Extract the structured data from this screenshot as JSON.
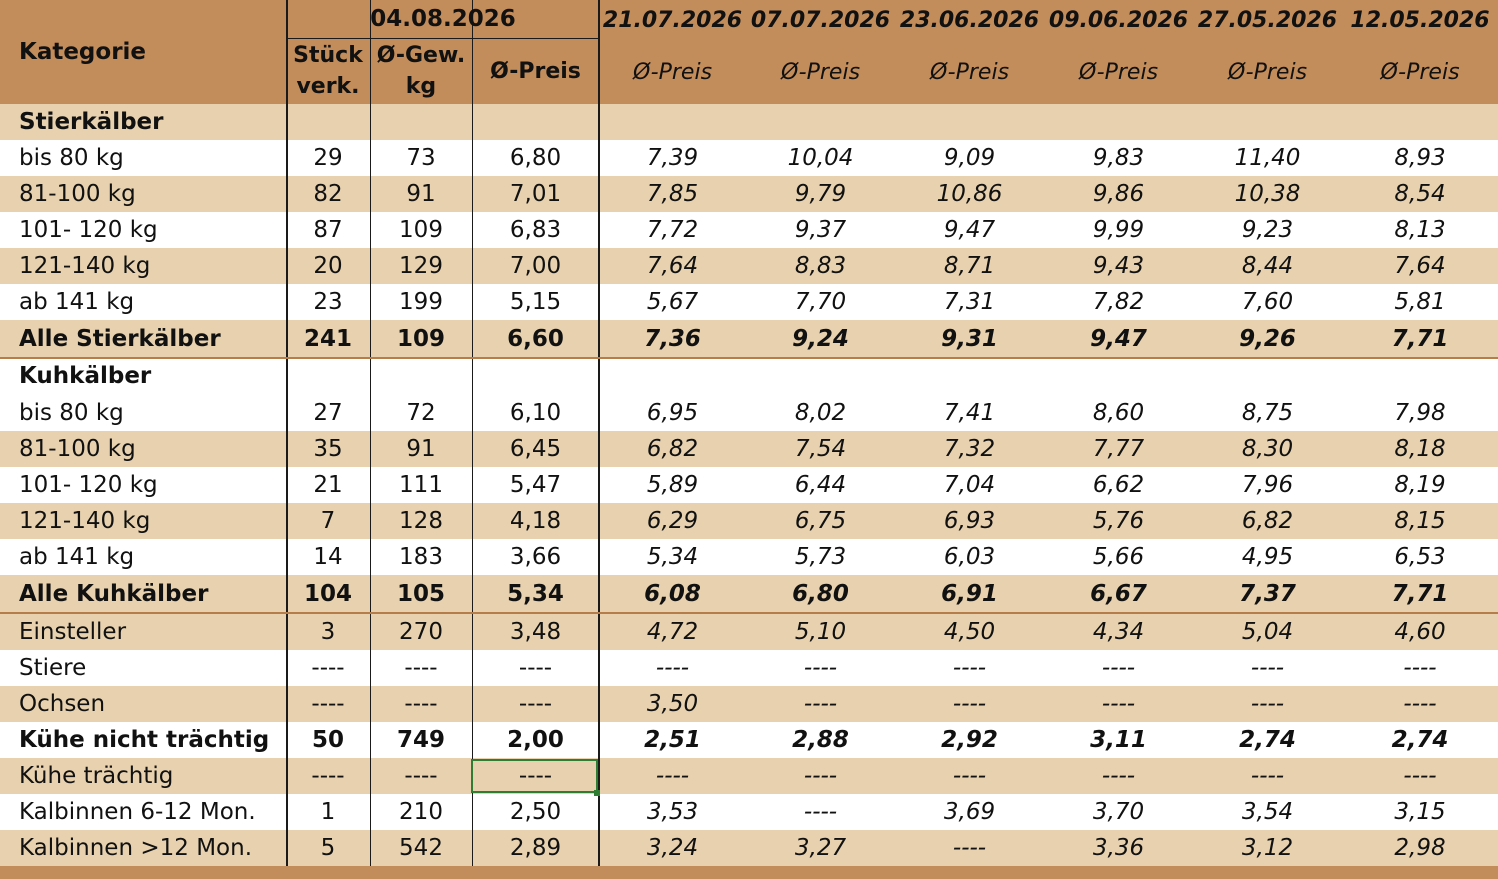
{
  "header": {
    "kategorie": "Kategorie",
    "current_date": "04.08.2026",
    "col_stueck": "Stück\nverk.",
    "col_gewicht": "Ø-Gew.\nkg",
    "col_preis": "Ø-Preis",
    "previous_dates": [
      "21.07.2026",
      "07.07.2026",
      "23.06.2026",
      "09.06.2026",
      "27.05.2026",
      "12.05.2026"
    ],
    "previous_preis_label": "Ø-Preis"
  },
  "rows": [
    {
      "label": "Stierkälber",
      "style": "section",
      "cells": [
        "",
        "",
        "",
        "",
        "",
        "",
        "",
        "",
        ""
      ]
    },
    {
      "label": "bis 80 kg",
      "style": "normal",
      "cells": [
        "29",
        "73",
        "6,80",
        "7,39",
        "10,04",
        "9,09",
        "9,83",
        "11,40",
        "8,93"
      ]
    },
    {
      "label": "81-100 kg",
      "style": "normal",
      "cells": [
        "82",
        "91",
        "7,01",
        "7,85",
        "9,79",
        "10,86",
        "9,86",
        "10,38",
        "8,54"
      ]
    },
    {
      "label": "101- 120 kg",
      "style": "normal",
      "cells": [
        "87",
        "109",
        "6,83",
        "7,72",
        "9,37",
        "9,47",
        "9,99",
        "9,23",
        "8,13"
      ]
    },
    {
      "label": "121-140 kg",
      "style": "normal",
      "cells": [
        "20",
        "129",
        "7,00",
        "7,64",
        "8,83",
        "8,71",
        "9,43",
        "8,44",
        "7,64"
      ]
    },
    {
      "label": "ab 141 kg",
      "style": "normal",
      "cells": [
        "23",
        "199",
        "5,15",
        "5,67",
        "7,70",
        "7,31",
        "7,82",
        "7,60",
        "5,81"
      ]
    },
    {
      "label": "Alle Stierkälber",
      "style": "total",
      "cells": [
        "241",
        "109",
        "6,60",
        "7,36",
        "9,24",
        "9,31",
        "9,47",
        "9,26",
        "7,71"
      ]
    },
    {
      "label": "Kuhkälber",
      "style": "section",
      "cells": [
        "",
        "",
        "",
        "",
        "",
        "",
        "",
        "",
        ""
      ]
    },
    {
      "label": "bis 80 kg",
      "style": "normal",
      "cells": [
        "27",
        "72",
        "6,10",
        "6,95",
        "8,02",
        "7,41",
        "8,60",
        "8,75",
        "7,98"
      ]
    },
    {
      "label": "81-100 kg",
      "style": "normal",
      "cells": [
        "35",
        "91",
        "6,45",
        "6,82",
        "7,54",
        "7,32",
        "7,77",
        "8,30",
        "8,18"
      ]
    },
    {
      "label": "101- 120 kg",
      "style": "normal",
      "cells": [
        "21",
        "111",
        "5,47",
        "5,89",
        "6,44",
        "7,04",
        "6,62",
        "7,96",
        "8,19"
      ]
    },
    {
      "label": "121-140 kg",
      "style": "normal",
      "cells": [
        "7",
        "128",
        "4,18",
        "6,29",
        "6,75",
        "6,93",
        "5,76",
        "6,82",
        "8,15"
      ]
    },
    {
      "label": "ab 141 kg",
      "style": "normal",
      "cells": [
        "14",
        "183",
        "3,66",
        "5,34",
        "5,73",
        "6,03",
        "5,66",
        "4,95",
        "6,53"
      ]
    },
    {
      "label": "Alle Kuhkälber",
      "style": "total",
      "cells": [
        "104",
        "105",
        "5,34",
        "6,08",
        "6,80",
        "6,91",
        "6,67",
        "7,37",
        "7,71"
      ]
    },
    {
      "label": "Einsteller",
      "style": "normal",
      "cells": [
        "3",
        "270",
        "3,48",
        "4,72",
        "5,10",
        "4,50",
        "4,34",
        "5,04",
        "4,60"
      ]
    },
    {
      "label": "Stiere",
      "style": "normal",
      "cells": [
        "----",
        "----",
        "----",
        "----",
        "----",
        "----",
        "----",
        "----",
        "----"
      ]
    },
    {
      "label": "Ochsen",
      "style": "normal",
      "cells": [
        "----",
        "----",
        "----",
        "3,50",
        "----",
        "----",
        "----",
        "----",
        "----"
      ]
    },
    {
      "label": "Kühe nicht trächtig",
      "style": "total",
      "cells": [
        "50",
        "749",
        "2,00",
        "2,51",
        "2,88",
        "2,92",
        "3,11",
        "2,74",
        "2,74"
      ]
    },
    {
      "label": "Kühe trächtig",
      "style": "normal",
      "cells": [
        "----",
        "----",
        "----",
        "----",
        "----",
        "----",
        "----",
        "----",
        "----"
      ]
    },
    {
      "label": "Kalbinnen 6-12 Mon.",
      "style": "normal",
      "cells": [
        "1",
        "210",
        "2,50",
        "3,53",
        "----",
        "3,69",
        "3,70",
        "3,54",
        "3,15"
      ]
    },
    {
      "label": "Kalbinnen >12 Mon.",
      "style": "normal",
      "cells": [
        "5",
        "542",
        "2,89",
        "3,24",
        "3,27",
        "----",
        "3,36",
        "3,12",
        "2,98"
      ]
    }
  ],
  "colors": {
    "header": "#c38d5b",
    "band_tan": "#e7d1ae",
    "band_white": "#ffffff",
    "separator": "#b47d4a",
    "selection": "#2e7d32"
  }
}
